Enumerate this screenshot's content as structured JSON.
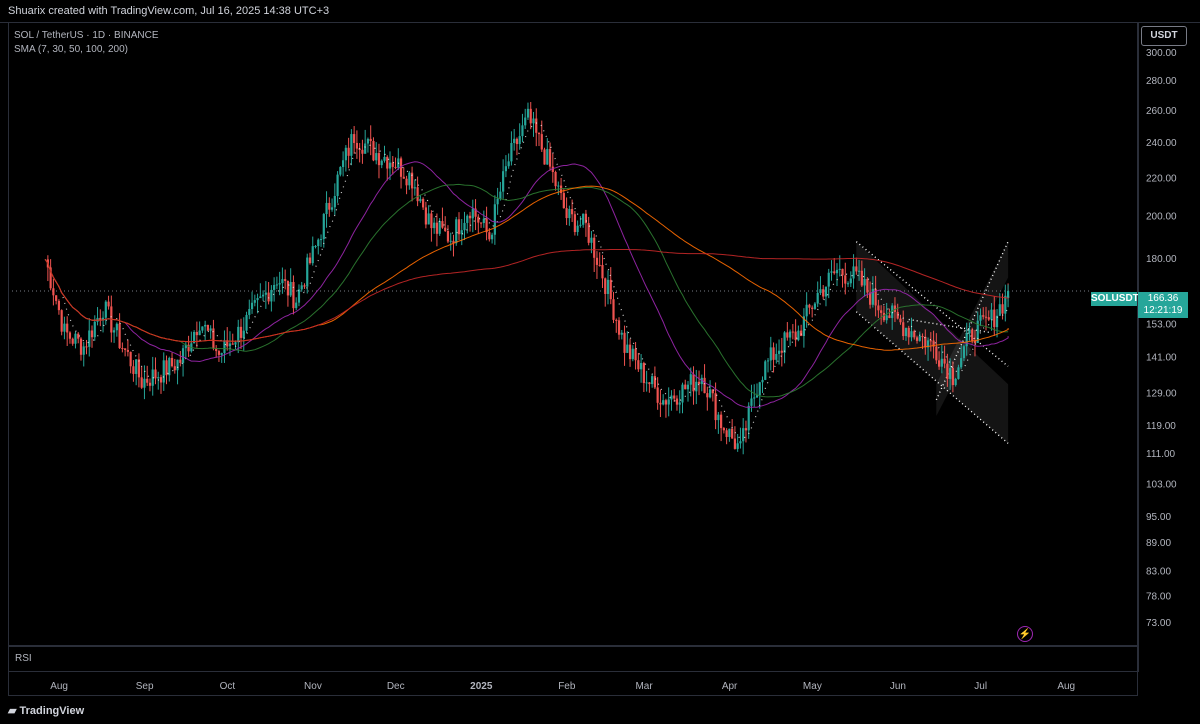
{
  "header": {
    "title": "Shuarix created with TradingView.com, Jul 16, 2025 14:38 UTC+3"
  },
  "legend": {
    "symbol": "SOL / TetherUS · 1D · BINANCE",
    "indicator": "SMA (7, 30, 50, 100, 200)"
  },
  "axis": {
    "currency": "USDT"
  },
  "ticker": {
    "label": "SOLUSDT",
    "price": "166.36",
    "countdown": "12:21:19"
  },
  "pane": {
    "rsi_label": "RSI"
  },
  "footer": {
    "brand": "TradingView"
  },
  "icons": {
    "alert": "lightning-icon",
    "logo": "tradingview-logo-icon"
  },
  "colors": {
    "up": "#26a69a",
    "down": "#ef5350",
    "sma7": "#ffffff",
    "sma30": "#9c27b0",
    "sma50": "#2e7d32",
    "sma100": "#ff6d00",
    "sma200": "#c62828"
  },
  "chart_data": {
    "type": "candlestick",
    "y_scale": "log",
    "ylim": [
      70,
      310
    ],
    "y_ticks": [
      "300.00",
      "280.00",
      "260.00",
      "240.00",
      "220.00",
      "200.00",
      "180.00",
      "153.00",
      "141.00",
      "129.00",
      "119.00",
      "111.00",
      "103.00",
      "95.00",
      "89.00",
      "83.00",
      "78.00",
      "73.00"
    ],
    "x_ticks": [
      "Aug",
      "Sep",
      "Oct",
      "Nov",
      "Dec",
      "2025",
      "Feb",
      "Mar",
      "Apr",
      "May",
      "Jun",
      "Jul",
      "Aug"
    ],
    "last_price": 166.36,
    "series": [
      {
        "name": "SMA 7"
      },
      {
        "name": "SMA 30"
      },
      {
        "name": "SMA 50"
      },
      {
        "name": "SMA 100"
      },
      {
        "name": "SMA 200"
      }
    ],
    "weekly_closes": [
      {
        "date": "2024-08-01",
        "v": 180
      },
      {
        "date": "2024-08-08",
        "v": 150
      },
      {
        "date": "2024-08-15",
        "v": 145
      },
      {
        "date": "2024-08-22",
        "v": 160
      },
      {
        "date": "2024-08-29",
        "v": 145
      },
      {
        "date": "2024-09-05",
        "v": 133
      },
      {
        "date": "2024-09-12",
        "v": 136
      },
      {
        "date": "2024-09-19",
        "v": 140
      },
      {
        "date": "2024-09-26",
        "v": 155
      },
      {
        "date": "2024-10-03",
        "v": 142
      },
      {
        "date": "2024-10-10",
        "v": 150
      },
      {
        "date": "2024-10-17",
        "v": 160
      },
      {
        "date": "2024-10-24",
        "v": 172
      },
      {
        "date": "2024-10-31",
        "v": 163
      },
      {
        "date": "2024-11-07",
        "v": 185
      },
      {
        "date": "2024-11-14",
        "v": 215
      },
      {
        "date": "2024-11-21",
        "v": 245
      },
      {
        "date": "2024-11-28",
        "v": 235
      },
      {
        "date": "2024-12-05",
        "v": 230
      },
      {
        "date": "2024-12-12",
        "v": 220
      },
      {
        "date": "2024-12-19",
        "v": 195
      },
      {
        "date": "2024-12-26",
        "v": 190
      },
      {
        "date": "2025-01-02",
        "v": 205
      },
      {
        "date": "2025-01-09",
        "v": 190
      },
      {
        "date": "2025-01-16",
        "v": 230
      },
      {
        "date": "2025-01-23",
        "v": 255
      },
      {
        "date": "2025-01-30",
        "v": 230
      },
      {
        "date": "2025-02-06",
        "v": 200
      },
      {
        "date": "2025-02-13",
        "v": 195
      },
      {
        "date": "2025-02-20",
        "v": 170
      },
      {
        "date": "2025-02-27",
        "v": 145
      },
      {
        "date": "2025-03-06",
        "v": 135
      },
      {
        "date": "2025-03-13",
        "v": 127
      },
      {
        "date": "2025-03-20",
        "v": 130
      },
      {
        "date": "2025-03-27",
        "v": 135
      },
      {
        "date": "2025-04-03",
        "v": 120
      },
      {
        "date": "2025-04-10",
        "v": 112
      },
      {
        "date": "2025-04-17",
        "v": 135
      },
      {
        "date": "2025-04-24",
        "v": 145
      },
      {
        "date": "2025-05-01",
        "v": 150
      },
      {
        "date": "2025-05-08",
        "v": 165
      },
      {
        "date": "2025-05-15",
        "v": 175
      },
      {
        "date": "2025-05-22",
        "v": 172
      },
      {
        "date": "2025-05-29",
        "v": 162
      },
      {
        "date": "2025-06-05",
        "v": 155
      },
      {
        "date": "2025-06-12",
        "v": 150
      },
      {
        "date": "2025-06-19",
        "v": 145
      },
      {
        "date": "2025-06-26",
        "v": 135
      },
      {
        "date": "2025-07-03",
        "v": 150
      },
      {
        "date": "2025-07-10",
        "v": 155
      },
      {
        "date": "2025-07-16",
        "v": 166.36
      }
    ]
  }
}
